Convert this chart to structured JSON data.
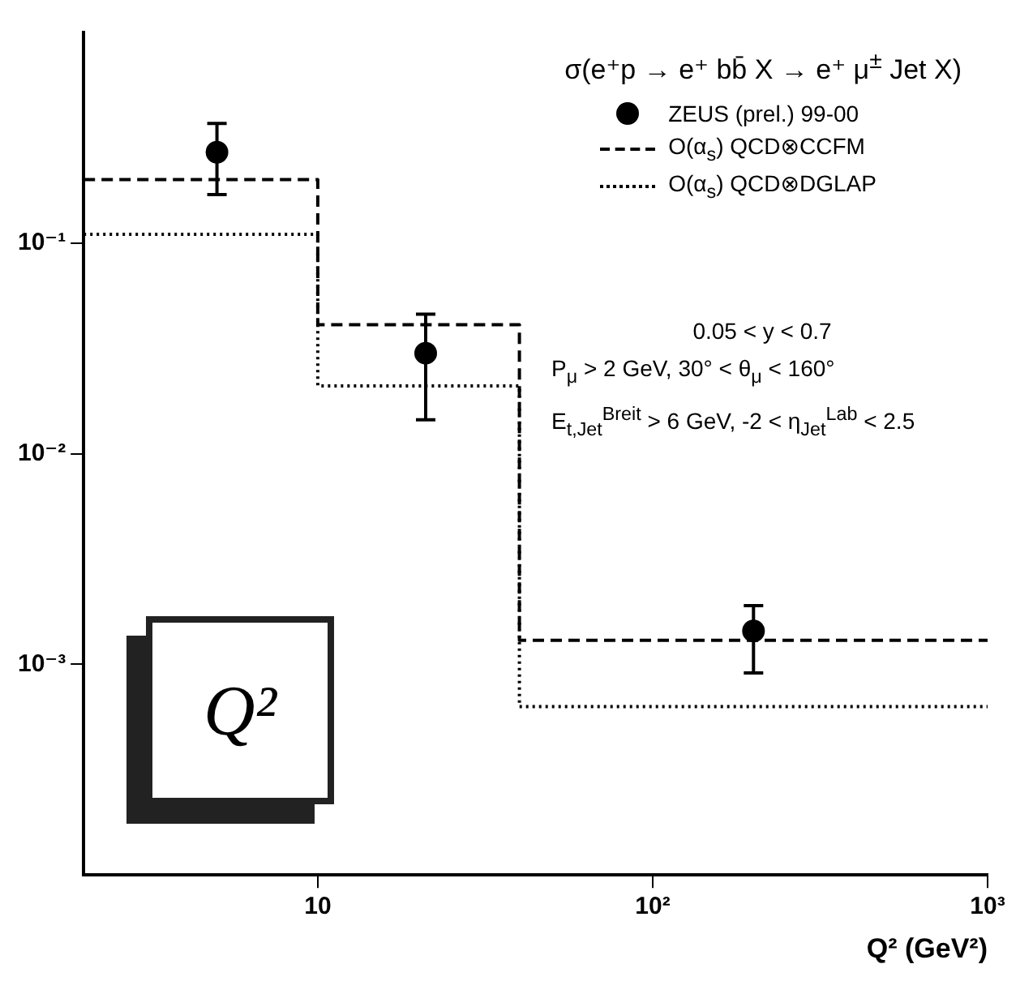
{
  "chart_data": {
    "type": "scatter",
    "legend_title": "σ(e⁺p → e⁺ bb̄ X → e⁺ μ$^{±}$ Jet X)",
    "xlabel": "Q² (GeV²)",
    "xlim": [
      2,
      1000
    ],
    "xticks": [
      {
        "value": 10,
        "label": "10"
      },
      {
        "value": 100,
        "label": "10²"
      },
      {
        "value": 1000,
        "label": "10³"
      }
    ],
    "ylim": [
      0.0001,
      1
    ],
    "yticks": [
      {
        "value": 0.001,
        "label": "10⁻³"
      },
      {
        "value": 0.01,
        "label": "10⁻²"
      },
      {
        "value": 0.1,
        "label": "10⁻¹"
      }
    ],
    "log": "xy",
    "legend": "top right",
    "grid": false,
    "series": [
      {
        "name": "ZEUS (prel.) 99-00",
        "type": "scatter",
        "marker": "circle",
        "color": "#000000",
        "x": [
          5,
          21,
          200
        ],
        "values": [
          0.27,
          0.03,
          0.00144
        ],
        "errors": [
          [
            0.17,
            0.37
          ],
          [
            0.0145,
            0.046
          ],
          [
            0.00091,
            0.0019
          ]
        ]
      },
      {
        "name": "O(α$_{s}$) QCD⊗CCFM",
        "type": "step",
        "marker": "none",
        "line_style": "dashed",
        "color": "#000000",
        "x": [
          2,
          10,
          40,
          1000
        ],
        "values": [
          0.2,
          0.041,
          0.0013,
          0.0013
        ]
      },
      {
        "name": "O(α$_{s}$) QCD⊗DGLAP",
        "type": "step",
        "marker": "none",
        "line_style": "dotted",
        "color": "#000000",
        "x": [
          2,
          10,
          40,
          1000
        ],
        "values": [
          0.11,
          0.021,
          0.00063,
          0.00063
        ]
      }
    ],
    "annotations": [
      "0.05 < y < 0.7",
      "P$_{μ}$ > 2 GeV, 30° < θ$_{μ}$ < 160°",
      "E$_{t,Jet}$$^{Breit}$ > 6 GeV, -2 < η$_{Jet}$$^{Lab}$ < 2.5",
      "Q²"
    ]
  }
}
